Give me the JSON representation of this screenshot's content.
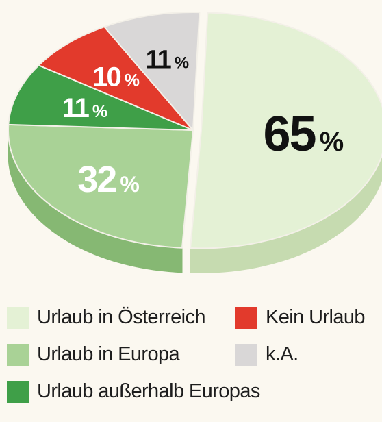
{
  "chart_data": {
    "type": "pie",
    "slices": [
      {
        "label": "Urlaub in Österreich",
        "value": 65,
        "display": "65",
        "color": "#e4f1d5",
        "side": "#c6dbb0",
        "text_color": "#111111"
      },
      {
        "label": "Urlaub in Europa",
        "value": 32,
        "display": "32",
        "color": "#a9d296",
        "side": "#86b873",
        "text_color": "#ffffff"
      },
      {
        "label": "Urlaub außerhalb Europas",
        "value": 11,
        "display": "11",
        "color": "#3f9f48",
        "side": "#2f7f37",
        "text_color": "#ffffff"
      },
      {
        "label": "Kein Urlaub",
        "value": 10,
        "display": "10",
        "color": "#e23a2c",
        "side": "#b52b20",
        "text_color": "#ffffff"
      },
      {
        "label": "k.A.",
        "value": 11,
        "display": "11",
        "color": "#d9d7d7",
        "side": "#b7b5b5",
        "text_color": "#111111"
      }
    ],
    "unit": "%",
    "legend_position": "bottom"
  },
  "legend": [
    {
      "label": "Urlaub in Österreich",
      "color": "#e4f1d5"
    },
    {
      "label": "Kein Urlaub",
      "color": "#e23a2c"
    },
    {
      "label": "Urlaub in Europa",
      "color": "#a9d296"
    },
    {
      "label": "k.A.",
      "color": "#d9d7d7"
    },
    {
      "label": "Urlaub außerhalb Europas",
      "color": "#3f9f48"
    }
  ]
}
